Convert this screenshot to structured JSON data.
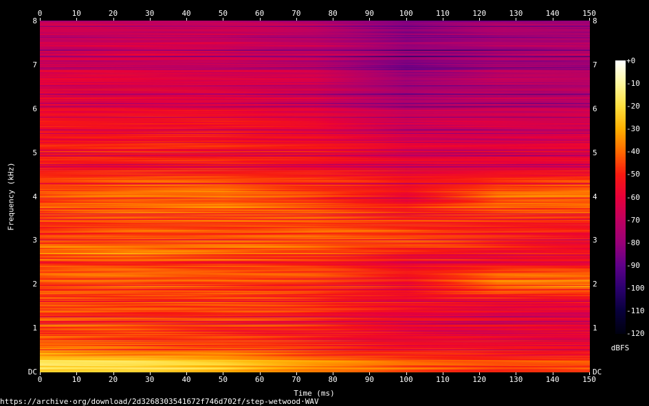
{
  "chart_data": {
    "type": "heatmap",
    "xlabel": "Time (ms)",
    "ylabel": "Frequency (kHz)",
    "xlim": [
      0,
      150
    ],
    "ylim": [
      0,
      8
    ],
    "x_ticks": [
      "0",
      "10",
      "20",
      "30",
      "40",
      "50",
      "60",
      "70",
      "80",
      "90",
      "100",
      "110",
      "120",
      "130",
      "140",
      "150"
    ],
    "y_ticks": [
      "DC",
      "1",
      "2",
      "3",
      "4",
      "5",
      "6",
      "7",
      "8"
    ],
    "colorbar": {
      "label": "dBFS",
      "range": [
        -120,
        0
      ],
      "ticks": [
        "+0",
        "-10",
        "-20",
        "-30",
        "-40",
        "-50",
        "-60",
        "-70",
        "-80",
        "-90",
        "-100",
        "-110",
        "-120"
      ],
      "colormap": [
        "#ffffff",
        "#fff8a0",
        "#ffe040",
        "#ffb000",
        "#ff6a00",
        "#f81a10",
        "#e8003a",
        "#c00060",
        "#9a0078",
        "#60008a",
        "#2c0070",
        "#08003c",
        "#000010"
      ]
    },
    "times_ms": [
      0,
      25,
      50,
      75,
      100,
      125,
      150
    ],
    "freqs_khz": [
      0.2,
      0.5,
      1,
      1.5,
      2,
      2.5,
      2.7,
      3,
      3.5,
      4,
      4.5,
      5,
      5.5,
      6,
      6.5,
      7,
      7.5,
      8
    ],
    "db": [
      [
        -18,
        -20,
        -25,
        -35,
        -42,
        -45,
        -45
      ],
      [
        -38,
        -40,
        -42,
        -48,
        -52,
        -55,
        -55
      ],
      [
        -45,
        -45,
        -48,
        -52,
        -58,
        -60,
        -60
      ],
      [
        -45,
        -45,
        -45,
        -48,
        -55,
        -60,
        -60
      ],
      [
        -42,
        -40,
        -42,
        -45,
        -52,
        -35,
        -33
      ],
      [
        -45,
        -45,
        -45,
        -48,
        -55,
        -55,
        -55
      ],
      [
        -38,
        -36,
        -40,
        -45,
        -52,
        -55,
        -55
      ],
      [
        -45,
        -42,
        -42,
        -40,
        -42,
        -50,
        -55
      ],
      [
        -48,
        -45,
        -45,
        -45,
        -50,
        -50,
        -50
      ],
      [
        -42,
        -38,
        -36,
        -45,
        -55,
        -38,
        -36
      ],
      [
        -50,
        -50,
        -50,
        -52,
        -58,
        -55,
        -55
      ],
      [
        -52,
        -52,
        -52,
        -55,
        -62,
        -62,
        -62
      ],
      [
        -55,
        -55,
        -55,
        -58,
        -68,
        -66,
        -66
      ],
      [
        -58,
        -58,
        -60,
        -62,
        -72,
        -68,
        -68
      ],
      [
        -62,
        -62,
        -64,
        -66,
        -78,
        -72,
        -72
      ],
      [
        -65,
        -65,
        -66,
        -70,
        -82,
        -75,
        -75
      ],
      [
        -68,
        -68,
        -68,
        -72,
        -82,
        -76,
        -76
      ],
      [
        -70,
        -70,
        -70,
        -74,
        -84,
        -78,
        -78
      ]
    ]
  },
  "source_url": "https://archive·org/download/2d3268303541672f746d702f/step-wetwood·WAV"
}
